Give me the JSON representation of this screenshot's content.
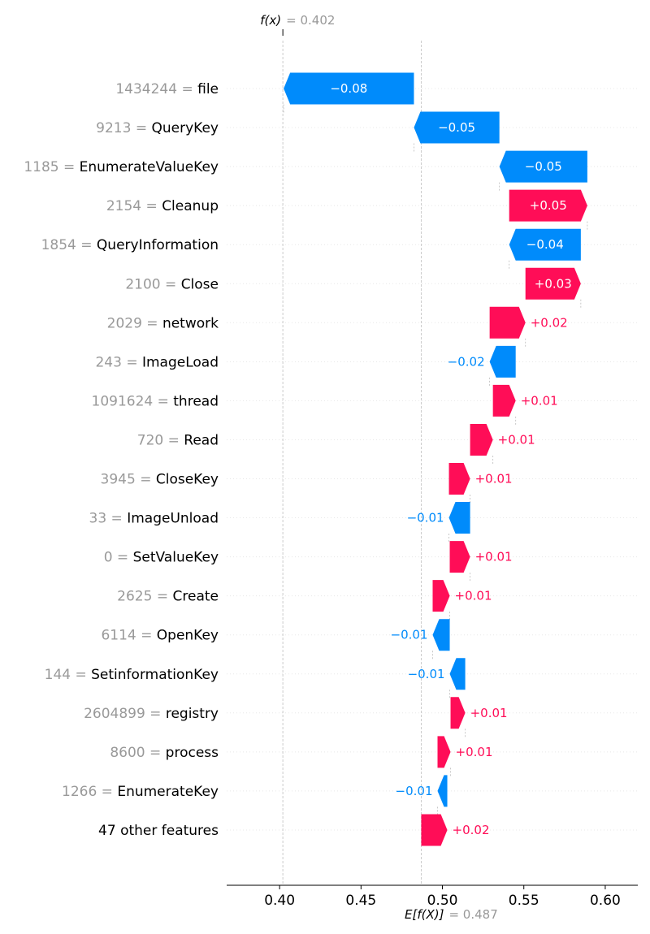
{
  "chart_data": {
    "type": "waterfall",
    "fx_label": "f(x)",
    "fx_value_text": "= 0.402",
    "base_label": "E[f(X)]",
    "base_value_text": "= 0.487",
    "base_value": 0.487,
    "final_value": 0.402,
    "xlim": [
      0.3675,
      0.62
    ],
    "xticks": [
      0.4,
      0.45,
      0.5,
      0.55,
      0.6
    ],
    "xtick_labels": [
      "0.40",
      "0.45",
      "0.50",
      "0.55",
      "0.60"
    ],
    "colors": {
      "positive": "#ff0d57",
      "negative": "#008bfb",
      "label_value": "#999999"
    },
    "features": [
      {
        "value": "1434244",
        "name": "file",
        "start": 0.4825,
        "contribution": -0.08,
        "label": "−0.08"
      },
      {
        "value": "9213",
        "name": "QueryKey",
        "start": 0.535,
        "contribution": -0.0525,
        "label": "−0.05"
      },
      {
        "value": "1185",
        "name": "EnumerateValueKey",
        "start": 0.589,
        "contribution": -0.054,
        "label": "−0.05"
      },
      {
        "value": "2154",
        "name": "Cleanup",
        "start": 0.541,
        "contribution": 0.048,
        "label": "+0.05"
      },
      {
        "value": "1854",
        "name": "QueryInformation",
        "start": 0.585,
        "contribution": -0.044,
        "label": "−0.04"
      },
      {
        "value": "2100",
        "name": "Close",
        "start": 0.551,
        "contribution": 0.034,
        "label": "+0.03"
      },
      {
        "value": "2029",
        "name": "network",
        "start": 0.529,
        "contribution": 0.022,
        "label": "+0.02"
      },
      {
        "value": "243",
        "name": "ImageLoad",
        "start": 0.545,
        "contribution": -0.016,
        "label": "−0.02"
      },
      {
        "value": "1091624",
        "name": "thread",
        "start": 0.531,
        "contribution": 0.014,
        "label": "+0.01"
      },
      {
        "value": "720",
        "name": "Read",
        "start": 0.517,
        "contribution": 0.014,
        "label": "+0.01"
      },
      {
        "value": "3945",
        "name": "CloseKey",
        "start": 0.504,
        "contribution": 0.013,
        "label": "+0.01"
      },
      {
        "value": "33",
        "name": "ImageUnload",
        "start": 0.517,
        "contribution": -0.013,
        "label": "−0.01"
      },
      {
        "value": "0",
        "name": "SetValueKey",
        "start": 0.5045,
        "contribution": 0.0125,
        "label": "+0.01"
      },
      {
        "value": "2625",
        "name": "Create",
        "start": 0.494,
        "contribution": 0.0105,
        "label": "+0.01"
      },
      {
        "value": "6114",
        "name": "OpenKey",
        "start": 0.5045,
        "contribution": -0.0105,
        "label": "−0.01"
      },
      {
        "value": "144",
        "name": "SetinformationKey",
        "start": 0.514,
        "contribution": -0.0095,
        "label": "−0.01"
      },
      {
        "value": "2604899",
        "name": "registry",
        "start": 0.505,
        "contribution": 0.009,
        "label": "+0.01"
      },
      {
        "value": "8600",
        "name": "process",
        "start": 0.497,
        "contribution": 0.008,
        "label": "+0.01"
      },
      {
        "value": "1266",
        "name": "EnumerateKey",
        "start": 0.503,
        "contribution": -0.006,
        "label": "−0.01"
      },
      {
        "value": "",
        "name": "47 other features",
        "start": 0.487,
        "contribution": 0.016,
        "label": "+0.02"
      }
    ]
  }
}
